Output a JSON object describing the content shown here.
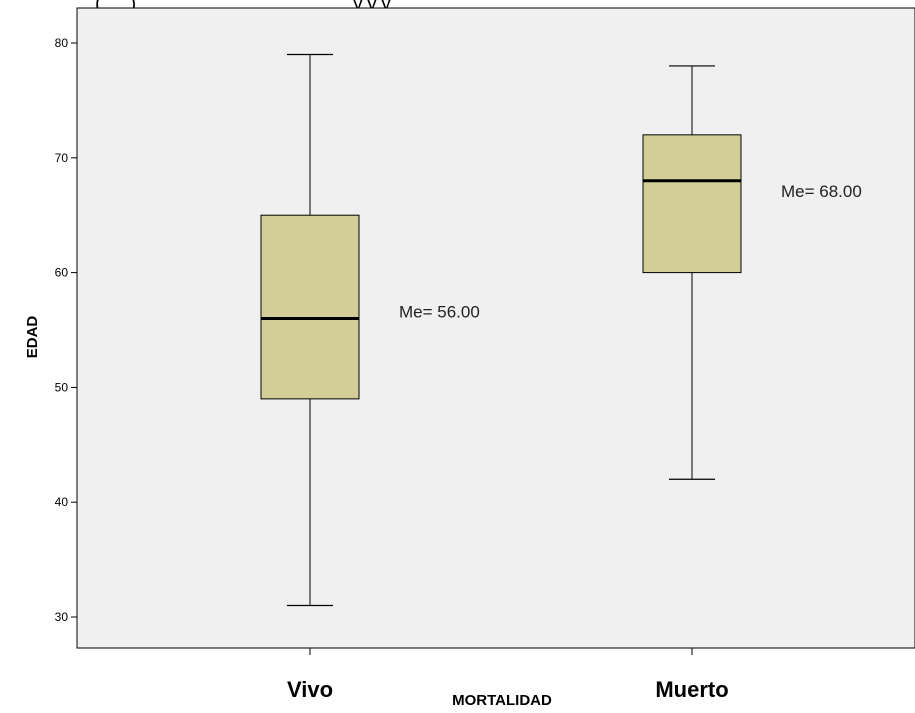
{
  "chart_data": {
    "type": "boxplot",
    "top_text_partial": "(.....), .....................................y.y.y",
    "xlabel": "MORTALIDAD",
    "ylabel": "EDAD",
    "ylim": [
      27,
      81
    ],
    "yticks": [
      30,
      40,
      50,
      60,
      70,
      80
    ],
    "grid": false,
    "colors": {
      "box_fill": "#D3CE98",
      "plot_bg": "#F0F0F0",
      "median": "#000000"
    },
    "categories": [
      "Vivo",
      "Muerto"
    ],
    "boxes": [
      {
        "category": "Vivo",
        "min": 31,
        "q1": 49,
        "median": 56,
        "q3": 65,
        "max": 79,
        "annotation": "Me= 56.00"
      },
      {
        "category": "Muerto",
        "min": 42,
        "q1": 60,
        "median": 68,
        "q3": 72,
        "max": 78,
        "annotation": "Me= 68.00"
      }
    ]
  }
}
